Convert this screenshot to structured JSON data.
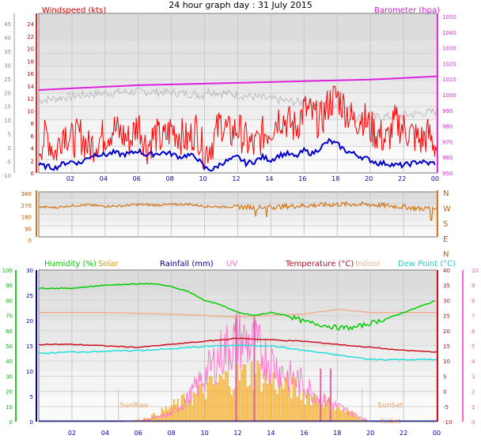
{
  "title": "24 hour graph day : 31 July 2015",
  "colors": {
    "wind": "#ff0000",
    "wind_avg": "#0000cc",
    "gust": "#ff2020",
    "baro": "#dd22dd",
    "baro_trace": "#bbbbbb",
    "winddir": "#d2781e",
    "humidity": "#00cc00",
    "solar": "#f4b030",
    "rain": "#0000aa",
    "uv": "#ff77cc",
    "temp": "#cc1122",
    "indoor": "#f0b090",
    "dew": "#22dddd"
  },
  "chart_data": [
    {
      "type": "line",
      "title": "Wind / Barometer",
      "ylabel_left": "Windspeed (kts)",
      "ylabel_right": "Barometer (hpa)",
      "ticks_outer_left": [
        "45",
        "40",
        "35",
        "30",
        "25",
        "20",
        "15",
        "10",
        "5",
        "0",
        "-5",
        "-10"
      ],
      "ticks_inner_left": [
        "24",
        "22",
        "20",
        "18",
        "16",
        "14",
        "12",
        "10",
        "8",
        "6",
        "4",
        "2",
        "0"
      ],
      "ticks_right": [
        "1050",
        "1040",
        "1030",
        "1020",
        "1010",
        "1000",
        "990",
        "980",
        "970",
        "960",
        "950"
      ],
      "x_ticks": [
        "02",
        "04",
        "06",
        "08",
        "10",
        "12",
        "14",
        "16",
        "18",
        "20",
        "22",
        "00"
      ],
      "ylim": [
        0,
        25
      ],
      "series": [
        {
          "name": "Windspeed (kts)",
          "role": "gust",
          "x": [
            0,
            0.5,
            1,
            1.5,
            2,
            2.5,
            3,
            3.5,
            4,
            4.5,
            5,
            5.5,
            6,
            6.5,
            7,
            7.5,
            8,
            8.5,
            9,
            9.5,
            10,
            10.5,
            11,
            11.5,
            12,
            12.5,
            13,
            13.5,
            14,
            14.5,
            15,
            15.5,
            16,
            16.5,
            17,
            17.5,
            18,
            18.5,
            19,
            19.5,
            20,
            20.5,
            21,
            21.5,
            22,
            22.5,
            23,
            23.5,
            24
          ],
          "values": [
            4,
            6,
            3,
            7,
            5,
            6,
            4,
            5,
            6,
            7,
            6,
            5,
            8,
            4,
            6,
            5,
            7,
            6,
            5,
            7,
            3,
            5,
            8,
            6,
            7,
            5,
            4,
            6,
            7,
            9,
            8,
            7,
            10,
            9,
            8,
            11,
            12,
            10,
            8,
            9,
            7,
            6,
            5,
            8,
            7,
            6,
            5,
            6,
            4
          ]
        },
        {
          "name": "Average",
          "role": "avg",
          "x": [
            0,
            0.5,
            1,
            1.5,
            2,
            2.5,
            3,
            3.5,
            4,
            4.5,
            5,
            5.5,
            6,
            6.5,
            7,
            7.5,
            8,
            8.5,
            9,
            9.5,
            10,
            10.5,
            11,
            11.5,
            12,
            12.5,
            13,
            13.5,
            14,
            14.5,
            15,
            15.5,
            16,
            16.5,
            17,
            17.5,
            18,
            18.5,
            19,
            19.5,
            20,
            20.5,
            21,
            21.5,
            22,
            22.5,
            23,
            23.5,
            24
          ],
          "values": [
            1.2,
            1.0,
            0.8,
            1.5,
            1.8,
            1.5,
            2.5,
            3.0,
            2.8,
            3.2,
            2.9,
            3.0,
            3.5,
            2.8,
            3.0,
            3.2,
            3.0,
            2.5,
            2.8,
            2.5,
            0.8,
            0.5,
            1.5,
            2.0,
            2.5,
            1.5,
            1.8,
            2.5,
            2.0,
            2.8,
            3.0,
            2.5,
            3.5,
            3.0,
            4.0,
            5.0,
            4.5,
            3.5,
            3.0,
            2.5,
            2.0,
            1.5,
            1.5,
            1.2,
            1.2,
            1.5,
            1.8,
            1.5,
            1.6
          ]
        },
        {
          "name": "Barometer (hpa)",
          "role": "baro",
          "x": [
            0,
            2,
            4,
            6,
            8,
            10,
            12,
            14,
            16,
            18,
            20,
            22,
            24
          ],
          "values": [
            1002,
            1003,
            1004,
            1005,
            1005.5,
            1006,
            1006.5,
            1007,
            1007.5,
            1008,
            1008.5,
            1009.5,
            1010.5
          ]
        }
      ]
    },
    {
      "type": "line",
      "title": "Wind direction",
      "ticks_left": [
        "360",
        "270",
        "180",
        "90",
        "0"
      ],
      "ticks_right": [
        "N",
        "W",
        "S",
        "E",
        "N"
      ],
      "ylim": [
        0,
        360
      ],
      "series": [
        {
          "name": "Direction",
          "x": [
            0,
            1,
            2,
            3,
            4,
            5,
            6,
            7,
            8,
            9,
            10,
            11,
            12,
            13,
            14,
            15,
            16,
            17,
            18,
            19,
            20,
            21,
            22,
            23,
            24
          ],
          "values": [
            240,
            235,
            250,
            255,
            245,
            248,
            260,
            255,
            258,
            262,
            245,
            240,
            242,
            235,
            238,
            245,
            250,
            255,
            260,
            262,
            258,
            250,
            240,
            225,
            235
          ]
        }
      ]
    },
    {
      "type": "line",
      "title": "Climate",
      "legend": [
        "Humidity (%)",
        "Solar",
        "Rainfall (mm)",
        "UV",
        "Temperature (°C)",
        "Indoor",
        "Dew Point (°C)"
      ],
      "ticks_hum": [
        "100",
        "90",
        "80",
        "70",
        "60",
        "50",
        "40",
        "30",
        "20",
        "10",
        "0"
      ],
      "ticks_solar": [
        "30",
        "25",
        "20",
        "15",
        "10",
        "5",
        "0"
      ],
      "ticks_temp": [
        "40",
        "35",
        "30",
        "25",
        "20",
        "15",
        "10",
        "5",
        "0",
        "-5",
        "-10"
      ],
      "ticks_uv": [
        "10",
        "9",
        "8",
        "7",
        "6",
        "5",
        "4",
        "3",
        "2",
        "1",
        "0"
      ],
      "annotations": [
        "SunRise",
        "SunSet",
        "RisSet"
      ],
      "ylim_temp": [
        -10,
        40
      ],
      "series": [
        {
          "name": "Humidity (%)",
          "axis": "hum",
          "x": [
            0,
            2,
            4,
            6,
            7,
            8,
            9,
            10,
            11,
            12,
            13,
            14,
            15,
            16,
            17,
            18,
            19,
            20,
            21,
            22,
            23,
            24
          ],
          "values": [
            88,
            88,
            90,
            91,
            91,
            89,
            86,
            80,
            77,
            72,
            70,
            72,
            70,
            66,
            64,
            62,
            62,
            65,
            68,
            72,
            76,
            80
          ]
        },
        {
          "name": "Temperature (°C)",
          "axis": "temp",
          "x": [
            0,
            2,
            4,
            6,
            8,
            10,
            12,
            14,
            16,
            18,
            20,
            22,
            24
          ],
          "values": [
            15.5,
            15.5,
            15,
            14.5,
            15.5,
            16.5,
            17.5,
            17,
            16.5,
            15.5,
            14.5,
            13.5,
            13
          ]
        },
        {
          "name": "Indoor",
          "axis": "temp",
          "x": [
            0,
            4,
            8,
            12,
            16,
            18,
            20,
            24
          ],
          "values": [
            26,
            26,
            25.5,
            24.5,
            25.5,
            27,
            26,
            26
          ]
        },
        {
          "name": "Dew Point (°C)",
          "axis": "temp",
          "x": [
            0,
            2,
            4,
            6,
            8,
            10,
            12,
            14,
            16,
            18,
            20,
            22,
            24
          ],
          "values": [
            12.5,
            13,
            13.2,
            13.5,
            14,
            14.8,
            15.2,
            15,
            13.5,
            12,
            10.5,
            10.5,
            10.5
          ]
        },
        {
          "name": "Solar",
          "axis": "solar",
          "x": [
            5,
            6,
            7,
            8,
            9,
            10,
            11,
            12,
            13,
            14,
            15,
            16,
            17,
            18,
            19,
            19.5,
            20
          ],
          "values": [
            0,
            0.5,
            1.5,
            3.5,
            5,
            7,
            9,
            10,
            11,
            9,
            8,
            6,
            5,
            3,
            1.5,
            0.5,
            0
          ]
        },
        {
          "name": "UV",
          "axis": "uv",
          "x": [
            6,
            8,
            9,
            10,
            11,
            12,
            13,
            14,
            15,
            16,
            17,
            18,
            19,
            20
          ],
          "values": [
            0,
            0.5,
            1.5,
            3,
            4.5,
            5.5,
            5,
            4,
            3,
            2.5,
            1.5,
            1,
            0.5,
            0
          ]
        },
        {
          "name": "Rainfall (mm)",
          "axis": "solar",
          "x": [
            0,
            24
          ],
          "values": [
            0,
            0
          ]
        }
      ]
    }
  ]
}
